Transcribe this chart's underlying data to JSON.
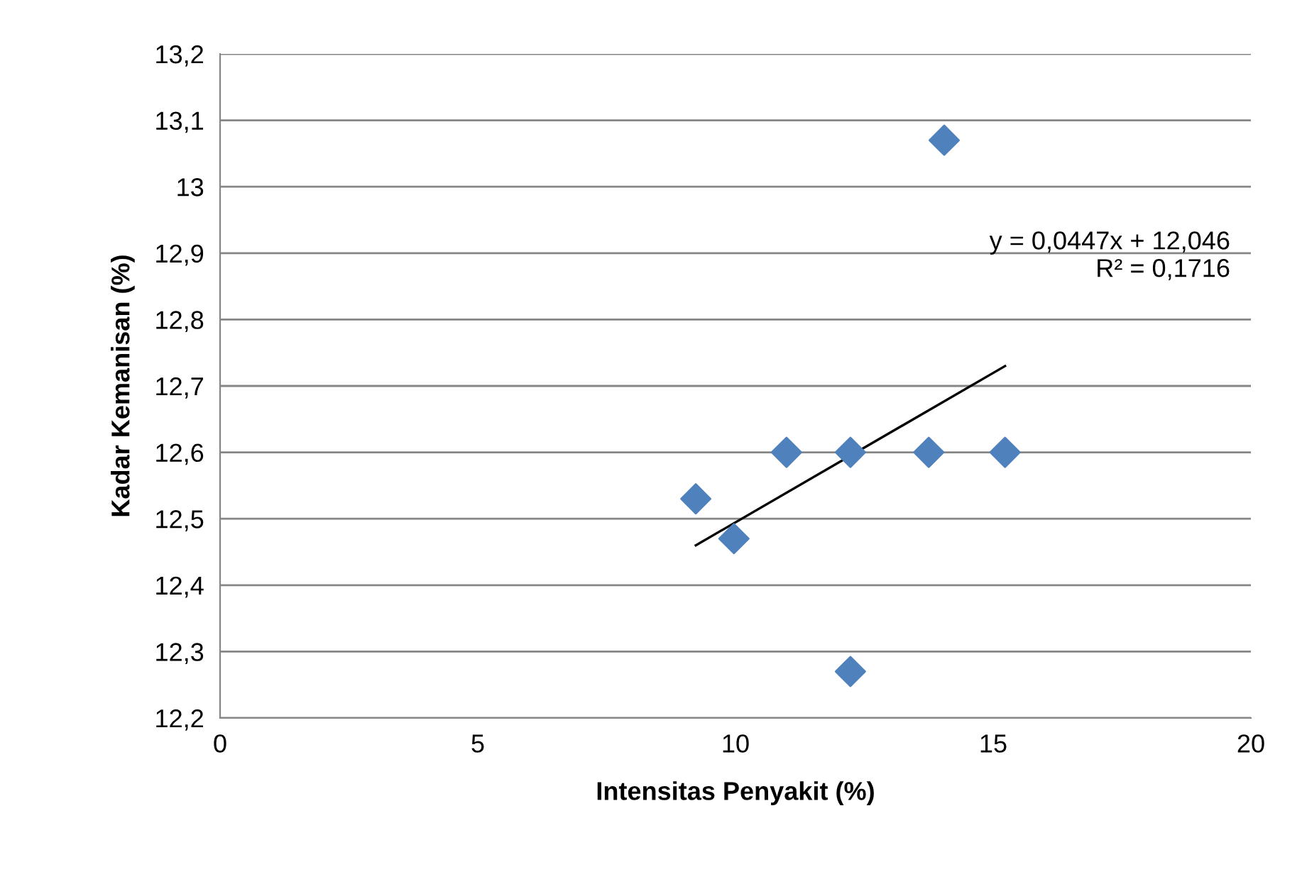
{
  "chart_data": {
    "type": "scatter",
    "xlabel": "Intensitas Penyakit (%)",
    "ylabel": "Kadar Kemanisan (%)",
    "series": [
      {
        "color": "#4f81bd",
        "marker": "diamond",
        "x": [
          9.23,
          9.97,
          10.99,
          12.23,
          12.23,
          13.75,
          14.05,
          15.23
        ],
        "values": [
          12.53,
          12.47,
          12.6,
          12.6,
          12.27,
          12.6,
          13.07,
          12.6
        ]
      },
      {
        "type": "line",
        "color": "#000000",
        "marker": "none",
        "line_style": "solid",
        "x": [
          9.23,
          15.23
        ],
        "values": [
          12.46,
          12.73
        ]
      }
    ],
    "annotations": [
      "y = 0,0447x + 12,046\nR² = 0,1716"
    ],
    "xlim": [
      0,
      20
    ],
    "xticks": [
      0,
      5,
      10,
      15,
      20
    ],
    "ylim": [
      12.2,
      13.2
    ],
    "yticks": [
      {
        "value": 12.2,
        "label": "12,2"
      },
      {
        "value": 12.3,
        "label": "12,3"
      },
      {
        "value": 12.4,
        "label": "12,4"
      },
      {
        "value": 12.5,
        "label": "12,5"
      },
      {
        "value": 12.6,
        "label": "12,6"
      },
      {
        "value": 12.7,
        "label": "12,7"
      },
      {
        "value": 12.8,
        "label": "12,8"
      },
      {
        "value": 12.9,
        "label": "12,9"
      },
      13,
      {
        "value": 13.1,
        "label": "13,1"
      },
      {
        "value": 13.2,
        "label": "13,2"
      }
    ],
    "grid": "y"
  }
}
